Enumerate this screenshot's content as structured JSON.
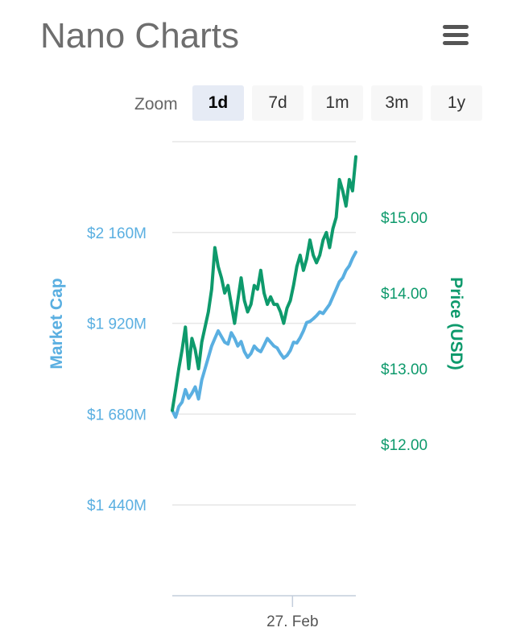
{
  "header": {
    "title": "Nano Charts",
    "menu_icon": "hamburger-menu-icon"
  },
  "zoom": {
    "label": "Zoom",
    "buttons": [
      {
        "label": "1d",
        "active": true
      },
      {
        "label": "7d",
        "active": false
      },
      {
        "label": "1m",
        "active": false
      },
      {
        "label": "3m",
        "active": false
      },
      {
        "label": "1y",
        "active": false
      }
    ]
  },
  "chart_data": {
    "type": "line",
    "title": "",
    "xlabel": "",
    "x_ticks": [
      "27. Feb"
    ],
    "grid": true,
    "y_left": {
      "label": "Market Cap",
      "tick_labels": [
        "$1 440M",
        "$1 680M",
        "$1 920M",
        "$2 160M"
      ],
      "tick_values": [
        1440,
        1680,
        1920,
        2160
      ],
      "unit": "M USD",
      "range": [
        1200,
        2400
      ],
      "color": "#5aafe1"
    },
    "y_right": {
      "label": "Price (USD)",
      "tick_labels": [
        "$12.00",
        "$13.00",
        "$14.00",
        "$15.00"
      ],
      "tick_values": [
        12,
        13,
        14,
        15
      ],
      "range": [
        10,
        16
      ],
      "color": "#0e9a6c"
    },
    "series": [
      {
        "name": "Market Cap",
        "axis": "left",
        "color": "#5aafe1",
        "values": [
          1690,
          1672,
          1700,
          1712,
          1745,
          1722,
          1735,
          1752,
          1720,
          1770,
          1800,
          1830,
          1860,
          1880,
          1900,
          1885,
          1870,
          1865,
          1895,
          1880,
          1860,
          1872,
          1845,
          1830,
          1840,
          1860,
          1850,
          1845,
          1862,
          1880,
          1870,
          1860,
          1855,
          1840,
          1828,
          1835,
          1848,
          1870,
          1868,
          1882,
          1900,
          1922,
          1925,
          1932,
          1940,
          1950,
          1946,
          1958,
          1970,
          1990,
          2010,
          2030,
          2040,
          2060,
          2072,
          2092,
          2108
        ]
      },
      {
        "name": "Price (USD)",
        "axis": "right",
        "color": "#0e9a6c",
        "values": [
          12.45,
          12.72,
          13.0,
          13.25,
          13.55,
          13.0,
          13.4,
          13.25,
          13.0,
          13.35,
          13.55,
          13.75,
          14.05,
          14.6,
          14.35,
          14.2,
          14.0,
          14.1,
          13.85,
          13.6,
          13.9,
          14.2,
          13.9,
          13.75,
          13.85,
          14.1,
          14.05,
          14.3,
          14.0,
          13.85,
          13.95,
          13.85,
          13.85,
          13.75,
          13.6,
          13.8,
          13.9,
          14.1,
          14.35,
          14.5,
          14.3,
          14.45,
          14.7,
          14.5,
          14.4,
          14.5,
          14.7,
          14.8,
          14.6,
          14.85,
          15.0,
          15.5,
          15.35,
          15.15,
          15.5,
          15.35,
          15.8
        ]
      }
    ]
  }
}
